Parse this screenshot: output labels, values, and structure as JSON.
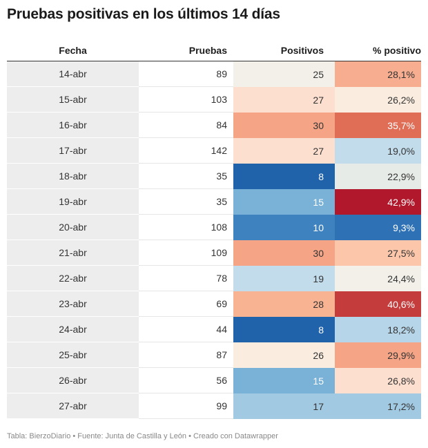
{
  "title": "Pruebas positivas en los últimos 14 días",
  "footer": "Tabla: BierzoDiario • Fuente: Junta de Castilla y León • Creado con Datawrapper",
  "chart_data": {
    "type": "table",
    "columns": [
      "Fecha",
      "Pruebas",
      "Positivos",
      "% positivo"
    ],
    "rows": [
      {
        "fecha": "14-abr",
        "pruebas": "89",
        "positivos": "25",
        "pct": "28,1%",
        "pos_color": "#f2f0e9",
        "pct_color": "#f7ad8f",
        "pos_text": "#333333",
        "pct_text": "#333333"
      },
      {
        "fecha": "15-abr",
        "pruebas": "103",
        "positivos": "27",
        "pct": "26,2%",
        "pos_color": "#fcdfcf",
        "pct_color": "#faeddf",
        "pos_text": "#333333",
        "pct_text": "#333333"
      },
      {
        "fecha": "16-abr",
        "pruebas": "84",
        "positivos": "30",
        "pct": "35,7%",
        "pos_color": "#f5a586",
        "pct_color": "#e06e56",
        "pos_text": "#333333",
        "pct_text": "#ffffff"
      },
      {
        "fecha": "17-abr",
        "pruebas": "142",
        "positivos": "27",
        "pct": "19,0%",
        "pos_color": "#fcdfcf",
        "pct_color": "#c2dceb",
        "pos_text": "#333333",
        "pct_text": "#333333"
      },
      {
        "fecha": "18-abr",
        "pruebas": "35",
        "positivos": "8",
        "pct": "22,9%",
        "pos_color": "#2163ab",
        "pct_color": "#e6ebe7",
        "pos_text": "#ffffff",
        "pct_text": "#333333"
      },
      {
        "fecha": "19-abr",
        "pruebas": "35",
        "positivos": "15",
        "pct": "42,9%",
        "pos_color": "#79b2d6",
        "pct_color": "#b2182b",
        "pos_text": "#ffffff",
        "pct_text": "#ffffff"
      },
      {
        "fecha": "20-abr",
        "pruebas": "108",
        "positivos": "10",
        "pct": "9,3%",
        "pos_color": "#3e82bf",
        "pct_color": "#2e72b5",
        "pos_text": "#ffffff",
        "pct_text": "#ffffff"
      },
      {
        "fecha": "21-abr",
        "pruebas": "109",
        "positivos": "30",
        "pct": "27,5%",
        "pos_color": "#f5a586",
        "pct_color": "#fbc6aa",
        "pos_text": "#333333",
        "pct_text": "#333333"
      },
      {
        "fecha": "22-abr",
        "pruebas": "78",
        "positivos": "19",
        "pct": "24,4%",
        "pos_color": "#c2dceb",
        "pct_color": "#f2f0e9",
        "pos_text": "#333333",
        "pct_text": "#333333"
      },
      {
        "fecha": "23-abr",
        "pruebas": "69",
        "positivos": "28",
        "pct": "40,6%",
        "pos_color": "#f8b393",
        "pct_color": "#c43c3b",
        "pos_text": "#333333",
        "pct_text": "#ffffff"
      },
      {
        "fecha": "24-abr",
        "pruebas": "44",
        "positivos": "8",
        "pct": "18,2%",
        "pos_color": "#2163ab",
        "pct_color": "#b6d5e8",
        "pos_text": "#ffffff",
        "pct_text": "#333333"
      },
      {
        "fecha": "25-abr",
        "pruebas": "87",
        "positivos": "26",
        "pct": "29,9%",
        "pos_color": "#faeddf",
        "pct_color": "#f5a586",
        "pos_text": "#333333",
        "pct_text": "#333333"
      },
      {
        "fecha": "26-abr",
        "pruebas": "56",
        "positivos": "15",
        "pct": "26,8%",
        "pos_color": "#79b2d6",
        "pct_color": "#fcdfcf",
        "pos_text": "#ffffff",
        "pct_text": "#333333"
      },
      {
        "fecha": "27-abr",
        "pruebas": "99",
        "positivos": "17",
        "pct": "17,2%",
        "pos_color": "#a2c9e2",
        "pct_color": "#a2c9e2",
        "pos_text": "#333333",
        "pct_text": "#333333"
      }
    ]
  }
}
